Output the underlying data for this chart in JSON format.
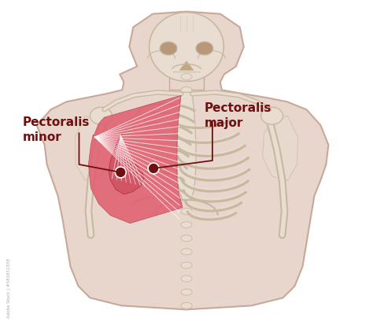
{
  "bg_color": "#ffffff",
  "body_fill": "#e8d5cc",
  "body_stroke": "#c8a898",
  "bone_fill": "#e8ddd0",
  "bone_stroke": "#c8b8a0",
  "muscle_major_fill": "#e06070",
  "muscle_minor_fill": "#d05060",
  "muscle_line_color": "#ffffff",
  "dark_red": "#6e1010",
  "label_minor": "Pectoralis\nminor",
  "label_major": "Pectoralis\nmajor",
  "label_fontsize": 11,
  "label_fontweight": "bold",
  "dot_color": "#6e1010",
  "watermark": "Adobe Stock | #581651558",
  "figsize": [
    4.74,
    4.14
  ],
  "dpi": 100
}
